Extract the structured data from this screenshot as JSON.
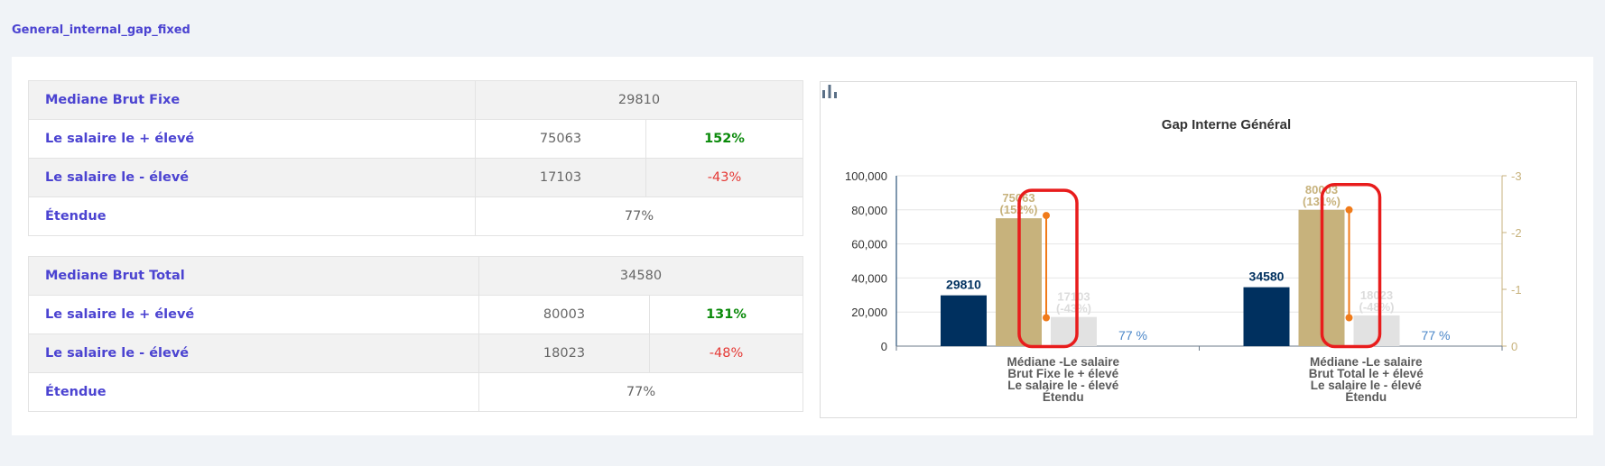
{
  "page_title": "General_internal_gap_fixed",
  "table_fixed": {
    "rows": [
      {
        "label": "Mediane Brut Fixe",
        "value": "29810"
      },
      {
        "label": "Le salaire le + élevé",
        "value": "75063",
        "pct": "152%"
      },
      {
        "label": "Le salaire le - élevé",
        "value": "17103",
        "pct": "-43%"
      },
      {
        "label": "Étendue",
        "value": "77%"
      }
    ]
  },
  "table_total": {
    "rows": [
      {
        "label": "Mediane Brut Total",
        "value": "34580"
      },
      {
        "label": "Le salaire le + élevé",
        "value": "80003",
        "pct": "131%"
      },
      {
        "label": "Le salaire le - élevé",
        "value": "18023",
        "pct": "-48%"
      },
      {
        "label": "Étendue",
        "value": "77%"
      }
    ]
  },
  "colors": {
    "median": "#00305f",
    "max": "#c7b27c",
    "min": "#e2e2e2",
    "range_text": "#4a86c8",
    "line": "#f07b1a",
    "annotation": "#e81c1c",
    "right_axis": "#c7b27c"
  },
  "chart_data": {
    "type": "bar",
    "title": "Gap Interne Général",
    "categories": [
      [
        "Médiane -Le salaire",
        "Brut Fixe le + élevé",
        "Le salaire le - élevé",
        "Étendu"
      ],
      [
        "Médiane -Le salaire",
        "Brut Total le + élevé",
        "Le salaire le - élevé",
        "Étendu"
      ]
    ],
    "series": [
      {
        "name": "Médiane",
        "values": [
          29810,
          34580
        ],
        "labels": [
          "29810",
          "34580"
        ]
      },
      {
        "name": "Le salaire le + élevé",
        "values": [
          75063,
          80003
        ],
        "labels": [
          [
            "75063",
            "(152%)"
          ],
          [
            "80003",
            "(131%)"
          ]
        ]
      },
      {
        "name": "Le salaire le - élevé",
        "values": [
          17103,
          18023
        ],
        "labels": [
          [
            "17103",
            "(-43%)"
          ],
          [
            "18023",
            "(-48%)"
          ]
        ]
      }
    ],
    "range_labels": [
      "77 %",
      "77 %"
    ],
    "ylim": [
      0,
      100000
    ],
    "yticks": [
      "0",
      "20,000",
      "40,000",
      "60,000",
      "80,000",
      "100,000"
    ],
    "y2lim": [
      0,
      -3
    ],
    "y2ticks": [
      "0",
      "-1",
      "-2",
      "-3"
    ],
    "line_segments": [
      {
        "from": 0.5,
        "to": 2.3
      },
      {
        "from": 0.5,
        "to": 2.4
      }
    ],
    "grid": true
  }
}
